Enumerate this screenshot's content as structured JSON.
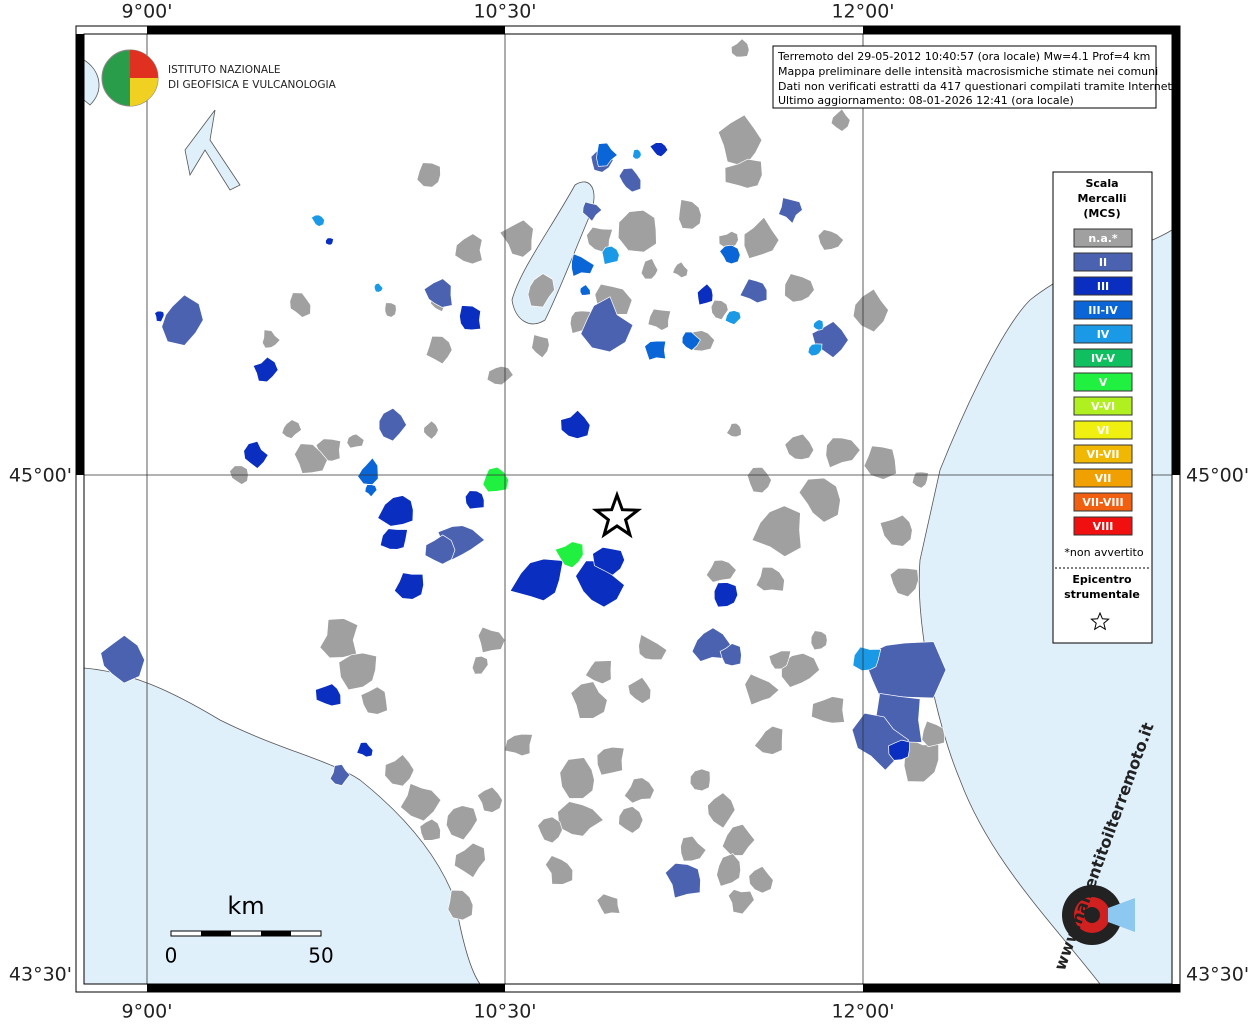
{
  "logo": {
    "line1": "ISTITUTO NAZIONALE",
    "line2": "DI GEOFISICA E VULCANOLOGIA"
  },
  "graticule": {
    "lon_labels": [
      "9°00'",
      "10°30'",
      "12°00'"
    ],
    "lat_labels": [
      "45°00'",
      "43°30'"
    ]
  },
  "info": [
    "Terremoto del 29-05-2012 10:40:57 (ora locale) Mw=4.1 Prof=4 km",
    "Mappa preliminare delle intensità macrosismiche stimate nei comuni",
    "Dati non verificati estratti da 417 questionari compilati tramite Internet.",
    "Ultimo aggiornamento: 08-01-2026 12:41 (ora locale)"
  ],
  "legend": {
    "title": [
      "Scala",
      "Mercalli",
      "(MCS)"
    ],
    "classes": [
      {
        "label": "n.a.*",
        "color": "#a0a0a0"
      },
      {
        "label": "II",
        "color": "#4a62b0"
      },
      {
        "label": "III",
        "color": "#0a2ebf"
      },
      {
        "label": "III-IV",
        "color": "#0a66d6"
      },
      {
        "label": "IV",
        "color": "#1a9ae6"
      },
      {
        "label": "IV-V",
        "color": "#10c060"
      },
      {
        "label": "V",
        "color": "#20f040"
      },
      {
        "label": "V-VI",
        "color": "#b0f020"
      },
      {
        "label": "VI",
        "color": "#f0f010"
      },
      {
        "label": "VI-VII",
        "color": "#f0b800"
      },
      {
        "label": "VII",
        "color": "#f0a000"
      },
      {
        "label": "VII-VIII",
        "color": "#f06010"
      },
      {
        "label": "VIII",
        "color": "#f01010"
      }
    ],
    "note": "*non avvertito",
    "epicenter": [
      "Epicentro",
      "strumentale"
    ]
  },
  "scale_bar": {
    "unit": "km",
    "ticks": [
      "0",
      "50"
    ]
  },
  "watermark": "www.haisentitoilterremoto.it"
}
